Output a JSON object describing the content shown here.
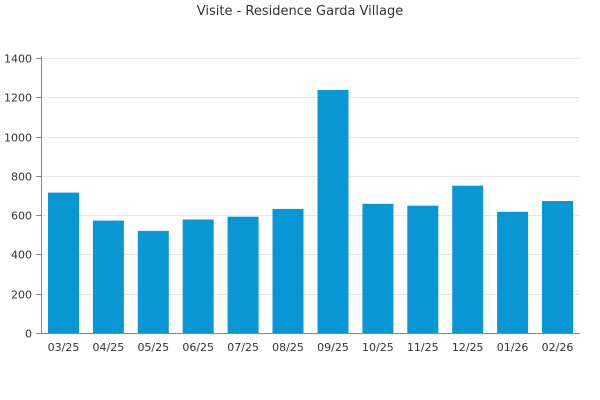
{
  "chart_data": {
    "type": "bar",
    "title": "Visite - Residence Garda Village",
    "xlabel": "",
    "ylabel": "",
    "categories": [
      "03/25",
      "04/25",
      "05/25",
      "06/25",
      "07/25",
      "08/25",
      "09/25",
      "10/25",
      "11/25",
      "12/25",
      "01/26",
      "02/26"
    ],
    "values": [
      715,
      572,
      520,
      578,
      592,
      632,
      1237,
      658,
      648,
      750,
      617,
      672
    ],
    "ylim": [
      0,
      1400
    ],
    "yticks": [
      0,
      200,
      400,
      600,
      800,
      1000,
      1200,
      1400
    ],
    "grid": true,
    "legend": "none",
    "bar_color": "#0996d5"
  }
}
